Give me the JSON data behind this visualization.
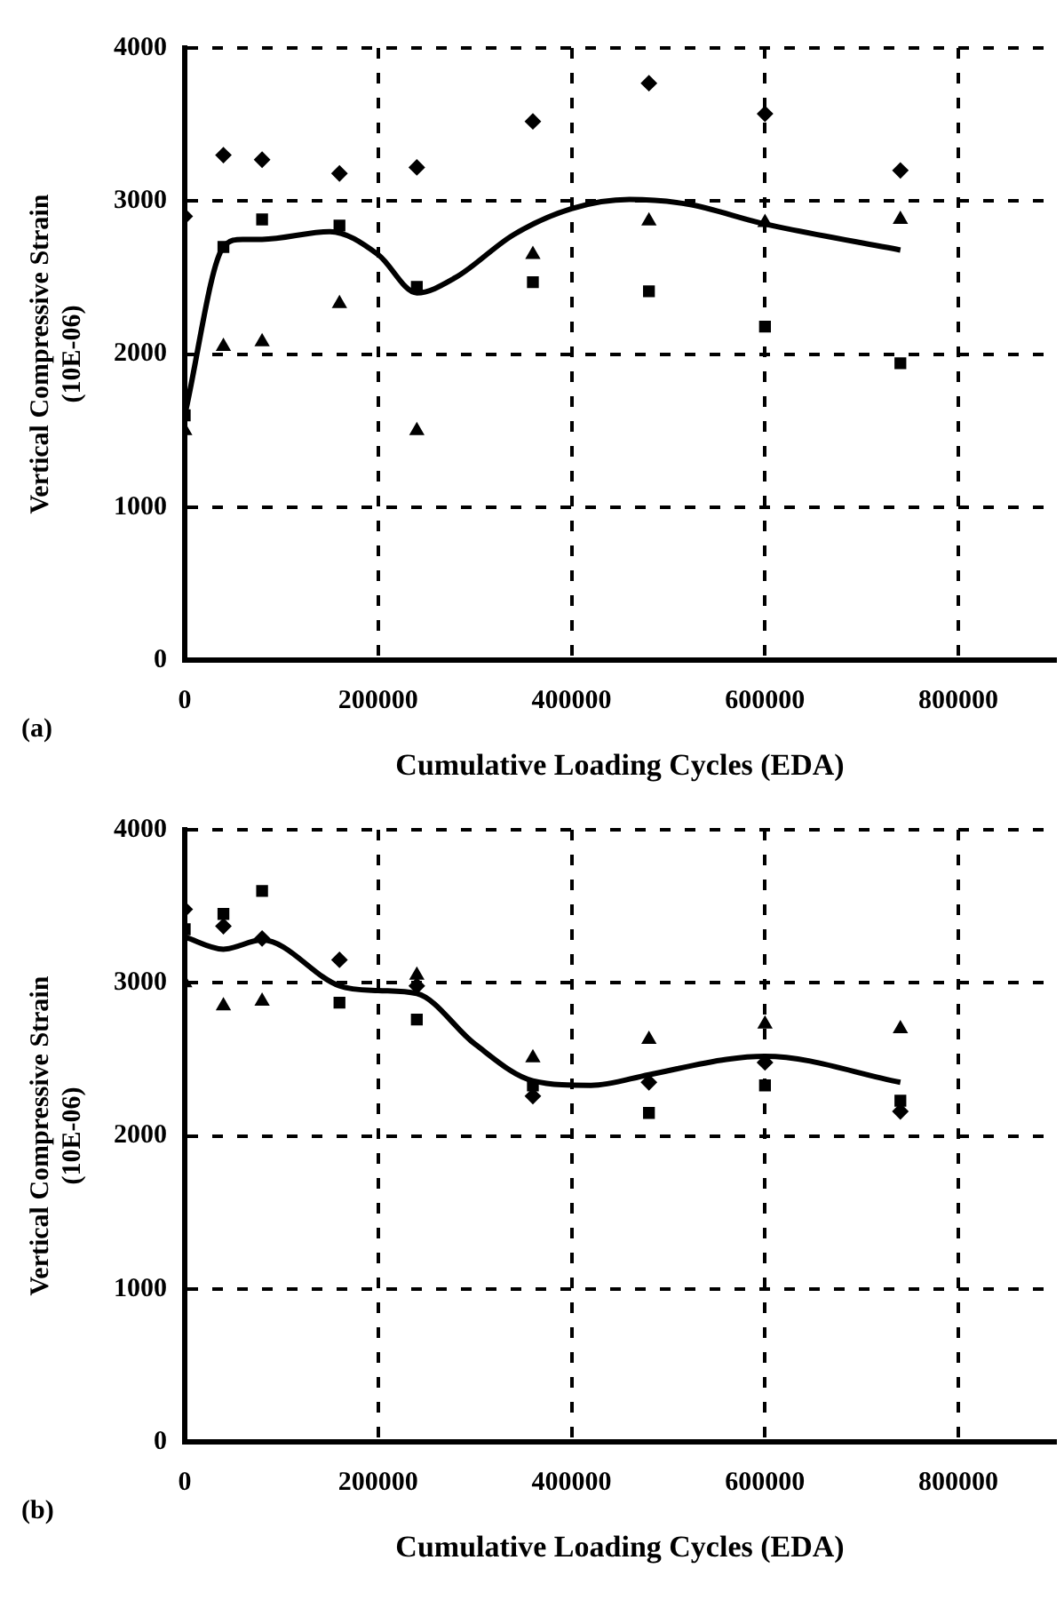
{
  "chart_data": [
    {
      "type": "scatter",
      "xlabel": "Cumulative Loading Cycles (EDA)",
      "ylabel": "Vertical Compressive Strain\n(10E-06)",
      "annotations": [
        "(a)"
      ],
      "xlim": [
        0,
        900000
      ],
      "xticks": [
        0,
        200000,
        400000,
        600000,
        800000
      ],
      "ylim": [
        0,
        4000
      ],
      "yticks": [
        0,
        1000,
        2000,
        3000,
        4000
      ],
      "grid": true,
      "x": [
        0,
        40000,
        80000,
        160000,
        240000,
        360000,
        480000,
        600000,
        740000
      ],
      "series": [
        {
          "marker": "diamond",
          "color": "#000000",
          "values": [
            2900,
            3300,
            3270,
            3180,
            3220,
            3520,
            3770,
            3570,
            3200
          ]
        },
        {
          "marker": "square",
          "color": "#000000",
          "values": [
            1600,
            2700,
            2880,
            2840,
            2440,
            2470,
            2410,
            2180,
            1940
          ]
        },
        {
          "marker": "triangle",
          "color": "#000000",
          "values": [
            1500,
            2050,
            2080,
            2330,
            1500,
            2650,
            2870,
            2860,
            2880
          ]
        },
        {
          "type": "line",
          "marker": "none",
          "line_style": "solid",
          "color": "#000000",
          "x": [
            0,
            40000,
            60000,
            80000,
            150000,
            200000,
            240000,
            280000,
            340000,
            400000,
            460000,
            520000,
            600000,
            740000
          ],
          "values": [
            1600,
            2700,
            2750,
            2750,
            2800,
            2650,
            2400,
            2500,
            2780,
            2950,
            3010,
            2980,
            2850,
            2680
          ]
        }
      ]
    },
    {
      "type": "scatter",
      "xlabel": "Cumulative Loading Cycles (EDA)",
      "ylabel": "Vertical Compressive Strain\n(10E-06)",
      "annotations": [
        "(b)"
      ],
      "xlim": [
        0,
        900000
      ],
      "xticks": [
        0,
        200000,
        400000,
        600000,
        800000
      ],
      "ylim": [
        0,
        4000
      ],
      "yticks": [
        0,
        1000,
        2000,
        3000,
        4000
      ],
      "grid": true,
      "x": [
        0,
        40000,
        80000,
        160000,
        240000,
        360000,
        480000,
        600000,
        740000
      ],
      "series": [
        {
          "marker": "diamond",
          "color": "#000000",
          "values": [
            3480,
            3370,
            3290,
            3150,
            2980,
            2260,
            2350,
            2480,
            2160
          ]
        },
        {
          "marker": "square",
          "color": "#000000",
          "values": [
            3350,
            3450,
            3600,
            2870,
            2760,
            2330,
            2150,
            2330,
            2230
          ]
        },
        {
          "marker": "triangle",
          "color": "#000000",
          "values": [
            3000,
            2850,
            2880,
            null,
            3050,
            2510,
            2630,
            2730,
            2700
          ]
        },
        {
          "type": "line",
          "marker": "none",
          "line_style": "solid",
          "color": "#000000",
          "x": [
            0,
            40000,
            80000,
            160000,
            200000,
            240000,
            300000,
            360000,
            420000,
            480000,
            560000,
            600000,
            740000
          ],
          "values": [
            3300,
            3220,
            3280,
            2980,
            2950,
            2930,
            2600,
            2360,
            2330,
            2400,
            2500,
            2520,
            2350
          ]
        }
      ]
    }
  ]
}
